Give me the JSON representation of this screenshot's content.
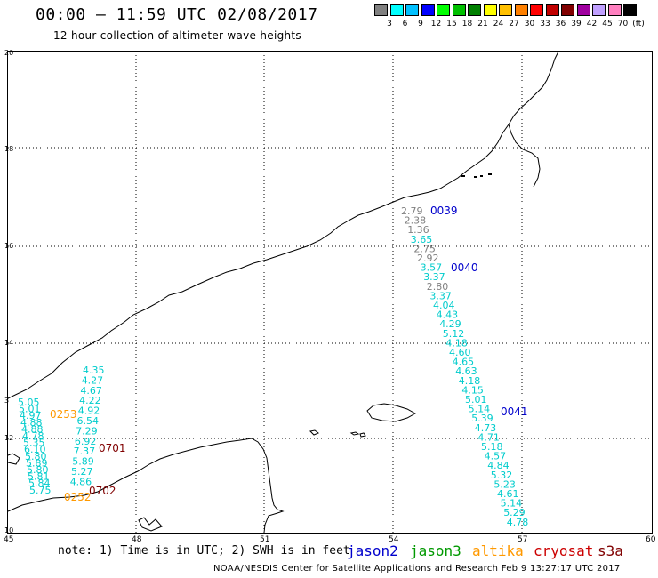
{
  "header": {
    "title": "00:00 – 11:59 UTC 02/08/2017",
    "subtitle": "12 hour collection of altimeter wave heights"
  },
  "legend": {
    "colors": [
      "#808080",
      "#00ffff",
      "#00c0ff",
      "#0000ff",
      "#00ff00",
      "#00c000",
      "#008000",
      "#ffff00",
      "#ffc000",
      "#ff8000",
      "#ff0000",
      "#c00000",
      "#800000",
      "#a000a0",
      "#c0a0ff",
      "#ff80c0",
      "#000000"
    ],
    "labels": [
      "3",
      "6",
      "9",
      "12",
      "15",
      "18",
      "21",
      "24",
      "27",
      "30",
      "33",
      "36",
      "39",
      "42",
      "45",
      "70",
      "(ft)"
    ]
  },
  "axes": {
    "y_labels": [
      "20",
      "18",
      "16",
      "14",
      "12",
      "10"
    ],
    "x_labels": [
      "45",
      "48",
      "51",
      "54",
      "57",
      "60"
    ],
    "y_side_mark": "3"
  },
  "passes": [
    {
      "label": "0039",
      "color": "#0000cc"
    },
    {
      "label": "0040",
      "color": "#0000cc"
    },
    {
      "label": "0041",
      "color": "#0000cc"
    },
    {
      "label": "0701",
      "color": "#800000"
    },
    {
      "label": "0702",
      "color": "#800000"
    },
    {
      "label": "0253",
      "color": "#ff9900"
    },
    {
      "label": "0252",
      "color": "#ff9900"
    }
  ],
  "track_east": {
    "values": [
      "2.79",
      "2.38",
      "1.36",
      "3.65",
      "2.75",
      "2.92",
      "3.57",
      "3.37",
      "2.80",
      "3.37",
      "4.04",
      "4.43",
      "4.29",
      "5.12",
      "4.18",
      "4.60",
      "4.65",
      "4.63",
      "4.18",
      "4.15",
      "5.01",
      "5.14",
      "5.39",
      "4.73",
      "4.71",
      "5.18",
      "4.57",
      "4.84",
      "5.32",
      "5.23",
      "4.61",
      "5.14",
      "5.29",
      "4.78"
    ],
    "colors": [
      "#808080",
      "#808080",
      "#808080",
      "#00cccc",
      "#808080",
      "#808080",
      "#00cccc",
      "#00cccc",
      "#808080",
      "#00cccc",
      "#00cccc",
      "#00cccc",
      "#00cccc",
      "#00cccc",
      "#00cccc",
      "#00cccc",
      "#00cccc",
      "#00cccc",
      "#00cccc",
      "#00cccc",
      "#00cccc",
      "#00cccc",
      "#00cccc",
      "#00cccc",
      "#00cccc",
      "#00cccc",
      "#00cccc",
      "#00cccc",
      "#00cccc",
      "#00cccc",
      "#00cccc",
      "#00cccc",
      "#00cccc",
      "#00cccc"
    ]
  },
  "track_west_a": {
    "values": [
      "5.05",
      "5.01",
      "4.97",
      "4.88",
      "4.88",
      "4.78",
      "5.35",
      "6.10",
      "5.80",
      "5.89",
      "5.80",
      "5.81",
      "5.84",
      "5.75"
    ]
  },
  "track_west_b": {
    "values": [
      "4.35",
      "4.27",
      "4.67",
      "4.22",
      "4.92",
      "6.54",
      "7.29",
      "6.92",
      "7.37",
      "5.89",
      "5.27",
      "4.86"
    ]
  },
  "footer": {
    "note": "note: 1) Time is in UTC; 2) SWH is in feet",
    "satellites": [
      {
        "name": "jason2",
        "color": "#0000cc"
      },
      {
        "name": "jason3",
        "color": "#009900"
      },
      {
        "name": "altika",
        "color": "#ff9900"
      },
      {
        "name": "cryosat",
        "color": "#cc0000"
      },
      {
        "name": "s3a",
        "color": "#800000"
      }
    ],
    "credit": "NOAA/NESDIS Center for Satellite Applications and Research   Feb  9 13:27:17 UTC 2017"
  }
}
